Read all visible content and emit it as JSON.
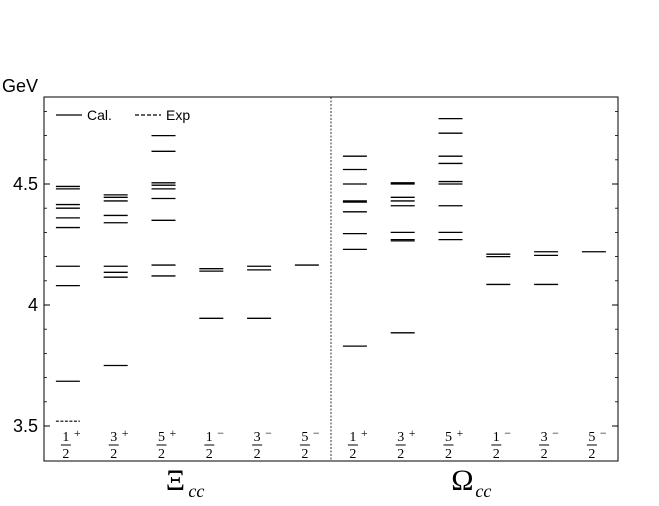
{
  "chart_data": {
    "type": "level-spectrum",
    "unit": "GeV",
    "yticks": [
      "3.5",
      "4",
      "4.5"
    ],
    "ylim": [
      3.45,
      4.95
    ],
    "legend": {
      "placement": "top-left",
      "items": [
        {
          "style": "solid",
          "label": "Cal."
        },
        {
          "style": "dashed",
          "label": "Exp"
        }
      ]
    },
    "panels": [
      {
        "symbol": "Ξ",
        "subscript": "cc",
        "columns": [
          {
            "num": "1",
            "den": "2",
            "parity": "+",
            "levels": [
              3.685,
              4.08,
              4.16,
              4.32,
              4.36,
              4.4,
              4.415,
              4.48,
              4.49
            ],
            "exp": [
              3.52
            ]
          },
          {
            "num": "3",
            "den": "2",
            "parity": "+",
            "levels": [
              3.75,
              4.115,
              4.135,
              4.16,
              4.34,
              4.37,
              4.43,
              4.445,
              4.455
            ],
            "exp": []
          },
          {
            "num": "5",
            "den": "2",
            "parity": "+",
            "levels": [
              4.12,
              4.165,
              4.35,
              4.44,
              4.48,
              4.495,
              4.505,
              4.635,
              4.7
            ],
            "exp": []
          },
          {
            "num": "1",
            "den": "2",
            "parity": "−",
            "levels": [
              3.945,
              4.14,
              4.15
            ],
            "exp": []
          },
          {
            "num": "3",
            "den": "2",
            "parity": "−",
            "levels": [
              3.945,
              4.145,
              4.16
            ],
            "exp": []
          },
          {
            "num": "5",
            "den": "2",
            "parity": "−",
            "levels": [
              4.165
            ],
            "exp": []
          }
        ]
      },
      {
        "symbol": "Ω",
        "subscript": "cc",
        "columns": [
          {
            "num": "1",
            "den": "2",
            "parity": "+",
            "levels": [
              3.83,
              4.23,
              4.295,
              4.385,
              4.425,
              4.43,
              4.5,
              4.56,
              4.615
            ],
            "exp": []
          },
          {
            "num": "3",
            "den": "2",
            "parity": "+",
            "levels": [
              3.885,
              4.265,
              4.27,
              4.3,
              4.41,
              4.43,
              4.445,
              4.5,
              4.505
            ],
            "exp": []
          },
          {
            "num": "5",
            "den": "2",
            "parity": "+",
            "levels": [
              4.27,
              4.3,
              4.41,
              4.5,
              4.51,
              4.585,
              4.615,
              4.71,
              4.77
            ],
            "exp": []
          },
          {
            "num": "1",
            "den": "2",
            "parity": "−",
            "levels": [
              4.085,
              4.2,
              4.21
            ],
            "exp": []
          },
          {
            "num": "3",
            "den": "2",
            "parity": "−",
            "levels": [
              4.085,
              4.205,
              4.22
            ],
            "exp": []
          },
          {
            "num": "5",
            "den": "2",
            "parity": "−",
            "levels": [
              4.22
            ],
            "exp": []
          }
        ]
      }
    ]
  }
}
